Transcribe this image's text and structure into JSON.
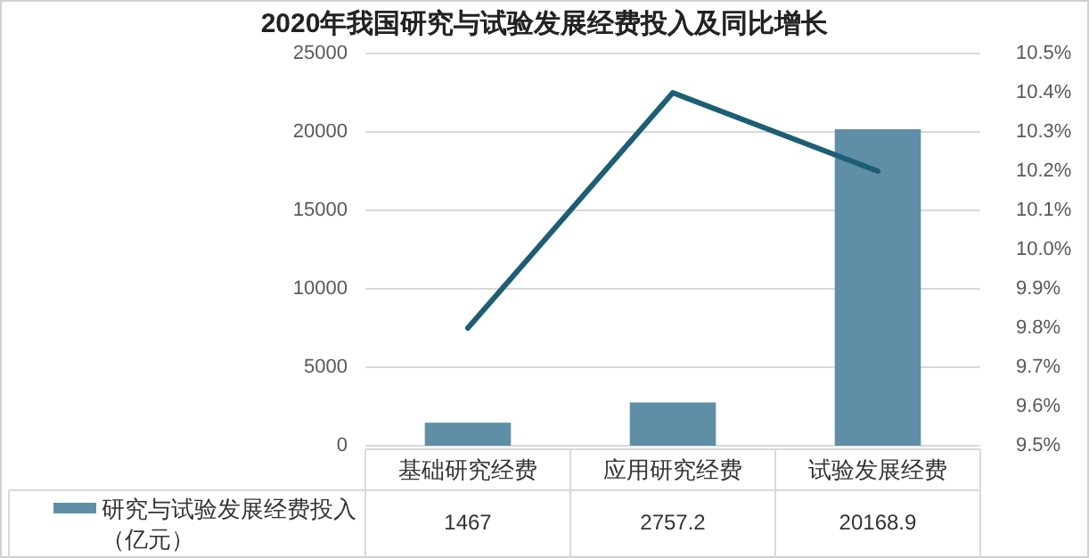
{
  "chart_data": {
    "type": "bar",
    "title": "2020年我国研究与试验发展经费投入及同比增长",
    "categories": [
      "基础研究经费",
      "应用研究经费",
      "试验发展经费"
    ],
    "series": [
      {
        "name": "研究与试验发展经费投入（亿元）",
        "color": "#5e8fa6",
        "values": [
          1467,
          2757.2,
          20168.9
        ],
        "value_labels": [
          "1467",
          "2757.2",
          "20168.9"
        ]
      },
      {
        "type": "line",
        "axis": "y2",
        "color": "#1d5e74",
        "values": [
          9.8,
          10.4,
          10.2
        ]
      }
    ],
    "ylim": [
      0,
      25000
    ],
    "yticks": [
      0,
      5000,
      10000,
      15000,
      20000,
      25000
    ],
    "y2lim": [
      9.5,
      10.5
    ],
    "y2ticks": [
      {
        "value": 9.5,
        "label": "9.5%"
      },
      {
        "value": 9.6,
        "label": "9.6%"
      },
      {
        "value": 9.7,
        "label": "9.7%"
      },
      {
        "value": 9.8,
        "label": "9.8%"
      },
      {
        "value": 9.9,
        "label": "9.9%"
      },
      {
        "value": 10.0,
        "label": "10.0%"
      },
      {
        "value": 10.1,
        "label": "10.1%"
      },
      {
        "value": 10.2,
        "label": "10.2%"
      },
      {
        "value": 10.3,
        "label": "10.3%"
      },
      {
        "value": 10.4,
        "label": "10.4%"
      },
      {
        "value": 10.5,
        "label": "10.5%"
      }
    ],
    "grid": "y",
    "legend": "bottom"
  }
}
